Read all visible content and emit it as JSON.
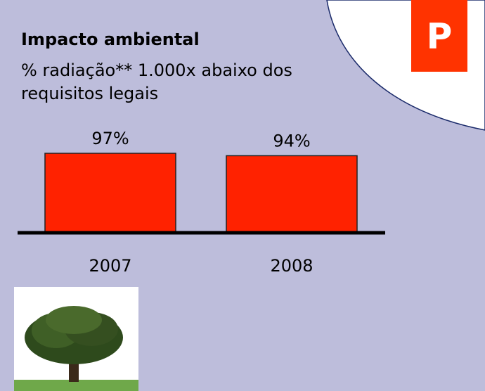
{
  "logo": "P",
  "chart_data": {
    "type": "bar",
    "title": "Impacto ambiental",
    "subtitle": "% radiação** 1.000x abaixo dos requisitos legais",
    "categories": [
      "2007",
      "2008"
    ],
    "values": [
      97,
      94
    ],
    "value_labels": [
      "97%",
      "94%"
    ],
    "color": "#ff2200",
    "ylim": [
      0,
      100
    ]
  }
}
